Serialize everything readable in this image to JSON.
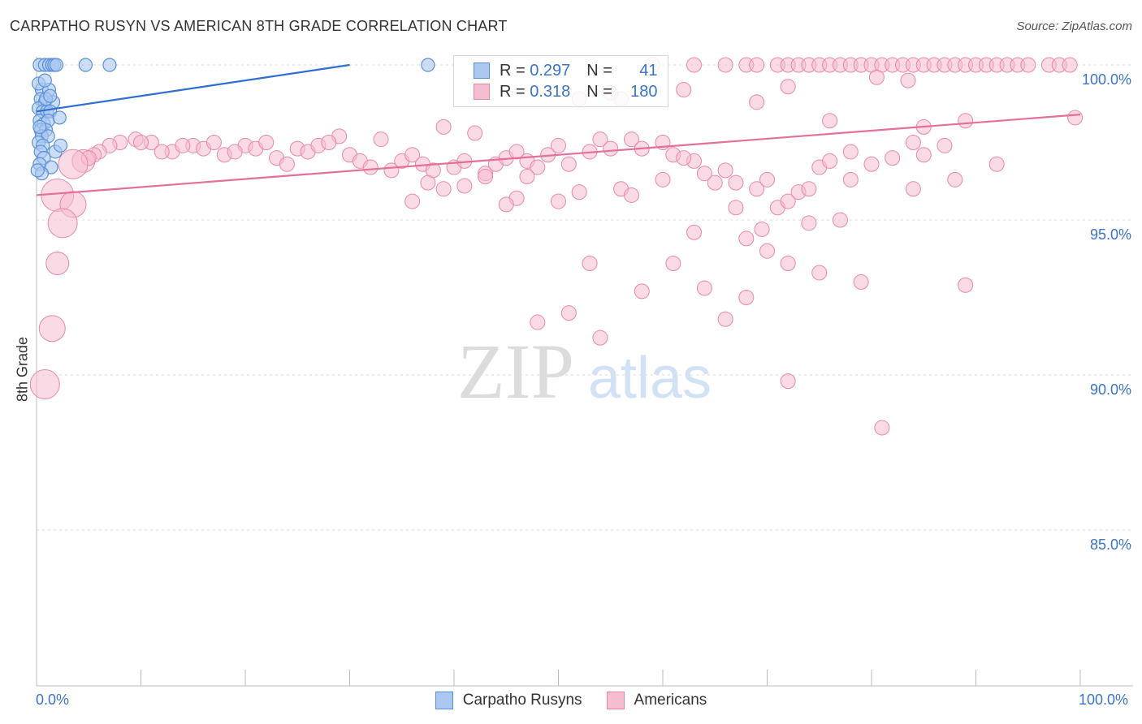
{
  "title": "CARPATHO RUSYN VS AMERICAN 8TH GRADE CORRELATION CHART",
  "source": "Source: ZipAtlas.com",
  "watermark": {
    "zip": "ZIP",
    "atlas": "atlas"
  },
  "legend": {
    "rows": [
      {
        "r_label": "R =",
        "r_value": "0.297",
        "n_label": "N =",
        "n_value": "41"
      },
      {
        "r_label": "R =",
        "r_value": "0.318",
        "n_label": "N =",
        "n_value": "180"
      }
    ]
  },
  "bottom_legend": [
    "Carpatho Rusyns",
    "Americans"
  ],
  "colors": {
    "blue_fill": "#aac8f0",
    "blue_stroke": "#5b8fd9",
    "blue_line": "#2f6fcf",
    "pink_fill": "#f6bcd0",
    "pink_stroke": "#e888a8",
    "pink_line": "#e46f9a",
    "axis_text": "#3a74c8",
    "grid": "#dddddd"
  },
  "chart_data": {
    "type": "scatter",
    "title": "CARPATHO RUSYN VS AMERICAN 8TH GRADE CORRELATION CHART",
    "xlabel": "",
    "ylabel": "8th Grade",
    "xlim": [
      0,
      100
    ],
    "ylim": [
      80.5,
      100.8
    ],
    "x_tick_labels": [
      "0.0%",
      "100.0%"
    ],
    "y_ticks": [
      85,
      90,
      95,
      100
    ],
    "y_tick_labels": [
      "85.0%",
      "90.0%",
      "95.0%",
      "100.0%"
    ],
    "series": [
      {
        "name": "Carpatho Rusyns",
        "color": "blue",
        "trend": [
          [
            0,
            98.5
          ],
          [
            30,
            100.0
          ]
        ],
        "points": [
          [
            0.3,
            100
          ],
          [
            0.8,
            100
          ],
          [
            1.2,
            100
          ],
          [
            1.5,
            100
          ],
          [
            1.7,
            100
          ],
          [
            4.7,
            100
          ],
          [
            7,
            100
          ],
          [
            37.5,
            100
          ],
          [
            0.5,
            99.2
          ],
          [
            1.2,
            99.2
          ],
          [
            0.4,
            98.9
          ],
          [
            0.8,
            98.8
          ],
          [
            1.6,
            98.8
          ],
          [
            0.2,
            98.6
          ],
          [
            0.6,
            98.5
          ],
          [
            1.0,
            98.5
          ],
          [
            1.3,
            98.5
          ],
          [
            0.3,
            98.2
          ],
          [
            0.7,
            98.1
          ],
          [
            1.1,
            98.2
          ],
          [
            2.2,
            98.3
          ],
          [
            0.4,
            97.9
          ],
          [
            0.9,
            97.9
          ],
          [
            0.5,
            97.7
          ],
          [
            1.1,
            97.7
          ],
          [
            0.2,
            97.5
          ],
          [
            0.6,
            97.4
          ],
          [
            1.8,
            97.2
          ],
          [
            2.3,
            97.4
          ],
          [
            0.4,
            97.2
          ],
          [
            0.7,
            97.0
          ],
          [
            0.3,
            96.8
          ],
          [
            1.4,
            96.7
          ],
          [
            0.5,
            96.5
          ],
          [
            0.1,
            96.6
          ],
          [
            0.9,
            98.9
          ],
          [
            1.3,
            99.0
          ],
          [
            0.2,
            99.4
          ],
          [
            0.8,
            99.5
          ],
          [
            0.3,
            98.0
          ],
          [
            1.9,
            100
          ]
        ]
      },
      {
        "name": "Americans",
        "color": "pink",
        "trend": [
          [
            0,
            95.8
          ],
          [
            100,
            98.4
          ]
        ],
        "points": [
          [
            59,
            100
          ],
          [
            63,
            100
          ],
          [
            66,
            100
          ],
          [
            68,
            100
          ],
          [
            69,
            100
          ],
          [
            71,
            100
          ],
          [
            72,
            100
          ],
          [
            73,
            100
          ],
          [
            74,
            100
          ],
          [
            75,
            100
          ],
          [
            76,
            100
          ],
          [
            77,
            100
          ],
          [
            78,
            100
          ],
          [
            79,
            100
          ],
          [
            80,
            100
          ],
          [
            81,
            100
          ],
          [
            82,
            100
          ],
          [
            83,
            100
          ],
          [
            84,
            100
          ],
          [
            85,
            100
          ],
          [
            86,
            100
          ],
          [
            87,
            100
          ],
          [
            88,
            100
          ],
          [
            89,
            100
          ],
          [
            90,
            100
          ],
          [
            91,
            100
          ],
          [
            92,
            100
          ],
          [
            93,
            100
          ],
          [
            94,
            100
          ],
          [
            95,
            100
          ],
          [
            97,
            100
          ],
          [
            98,
            100
          ],
          [
            99,
            100
          ],
          [
            80.5,
            99.6
          ],
          [
            83.5,
            99.5
          ],
          [
            72,
            99.3
          ],
          [
            69,
            98.8
          ],
          [
            52,
            98.9
          ],
          [
            56,
            98.9
          ],
          [
            55,
            99.1
          ],
          [
            62,
            99.2
          ],
          [
            76,
            98.2
          ],
          [
            99.5,
            98.3
          ],
          [
            85,
            98.0
          ],
          [
            89,
            98.2
          ],
          [
            42,
            97.8
          ],
          [
            39,
            98.0
          ],
          [
            29,
            97.7
          ],
          [
            33,
            97.6
          ],
          [
            25,
            97.3
          ],
          [
            20,
            97.4
          ],
          [
            18,
            97.1
          ],
          [
            15,
            97.4
          ],
          [
            13,
            97.2
          ],
          [
            11,
            97.5
          ],
          [
            9.5,
            97.6
          ],
          [
            8,
            97.5
          ],
          [
            7,
            97.4
          ],
          [
            6,
            97.2
          ],
          [
            5.5,
            97.1
          ],
          [
            4.5,
            96.9
          ],
          [
            5,
            97.0
          ],
          [
            3.5,
            96.8
          ],
          [
            2,
            95.8
          ],
          [
            3.5,
            95.5
          ],
          [
            2.5,
            94.9
          ],
          [
            2,
            93.6
          ],
          [
            1.5,
            91.5
          ],
          [
            0.8,
            89.7
          ],
          [
            10,
            97.5
          ],
          [
            12,
            97.2
          ],
          [
            14,
            97.4
          ],
          [
            16,
            97.3
          ],
          [
            17,
            97.5
          ],
          [
            19,
            97.2
          ],
          [
            21,
            97.3
          ],
          [
            22,
            97.5
          ],
          [
            23,
            97.0
          ],
          [
            24,
            96.8
          ],
          [
            26,
            97.2
          ],
          [
            27,
            97.4
          ],
          [
            28,
            97.5
          ],
          [
            30,
            97.1
          ],
          [
            31,
            96.9
          ],
          [
            32,
            96.7
          ],
          [
            34,
            96.6
          ],
          [
            35,
            96.9
          ],
          [
            36,
            97.1
          ],
          [
            37,
            96.8
          ],
          [
            38,
            96.6
          ],
          [
            40,
            96.7
          ],
          [
            41,
            96.9
          ],
          [
            43,
            96.5
          ],
          [
            44,
            96.8
          ],
          [
            45,
            97.0
          ],
          [
            46,
            97.2
          ],
          [
            47,
            96.9
          ],
          [
            48,
            96.7
          ],
          [
            49,
            97.1
          ],
          [
            50,
            97.4
          ],
          [
            51,
            96.8
          ],
          [
            53,
            97.2
          ],
          [
            54,
            97.6
          ],
          [
            55,
            97.3
          ],
          [
            57,
            97.6
          ],
          [
            58,
            97.3
          ],
          [
            60,
            97.5
          ],
          [
            61,
            97.1
          ],
          [
            63,
            96.9
          ],
          [
            64,
            96.5
          ],
          [
            65,
            96.2
          ],
          [
            66,
            96.6
          ],
          [
            67,
            96.2
          ],
          [
            69,
            96.0
          ],
          [
            70,
            96.3
          ],
          [
            71,
            95.4
          ],
          [
            72,
            95.6
          ],
          [
            73,
            95.9
          ],
          [
            74,
            96.0
          ],
          [
            75,
            96.7
          ],
          [
            78,
            97.2
          ],
          [
            80,
            96.8
          ],
          [
            82,
            97.0
          ],
          [
            84,
            97.5
          ],
          [
            85,
            97.1
          ],
          [
            87,
            97.4
          ],
          [
            46,
            95.7
          ],
          [
            50,
            95.6
          ],
          [
            52,
            95.9
          ],
          [
            56,
            96.0
          ],
          [
            63,
            94.6
          ],
          [
            67,
            95.4
          ],
          [
            68,
            94.4
          ],
          [
            70,
            94.0
          ],
          [
            74,
            94.9
          ],
          [
            77,
            95.0
          ],
          [
            69.5,
            94.7
          ],
          [
            53,
            93.6
          ],
          [
            58,
            92.7
          ],
          [
            61,
            93.6
          ],
          [
            64,
            92.8
          ],
          [
            68,
            92.5
          ],
          [
            72,
            93.6
          ],
          [
            75,
            93.3
          ],
          [
            79,
            93.0
          ],
          [
            89,
            92.9
          ],
          [
            48,
            91.7
          ],
          [
            51,
            92.0
          ],
          [
            54,
            91.2
          ],
          [
            66,
            91.8
          ],
          [
            72,
            89.8
          ],
          [
            81,
            88.3
          ],
          [
            37.5,
            96.2
          ],
          [
            43,
            96.4
          ],
          [
            41,
            96.1
          ],
          [
            45,
            95.5
          ],
          [
            36,
            95.6
          ],
          [
            39,
            96.0
          ],
          [
            47,
            96.4
          ],
          [
            57,
            95.8
          ],
          [
            60,
            96.3
          ],
          [
            62,
            97.0
          ],
          [
            76,
            96.9
          ],
          [
            78,
            96.3
          ],
          [
            84,
            96.0
          ],
          [
            88,
            96.3
          ],
          [
            92,
            96.8
          ]
        ]
      }
    ]
  }
}
